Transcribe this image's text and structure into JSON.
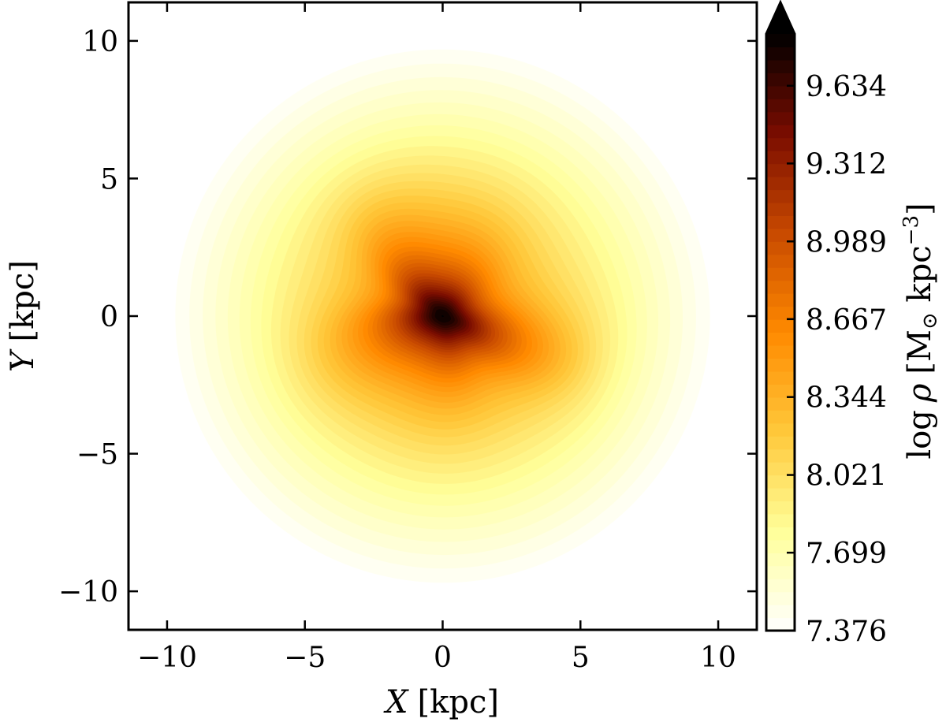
{
  "chart_data": {
    "type": "heatmap",
    "subtype": "filled-contour",
    "title": "",
    "xlabel_symbol": "X",
    "xlabel_unit": "[kpc]",
    "ylabel_symbol": "Y",
    "ylabel_unit": "[kpc]",
    "colorbar_label_prefix": "log",
    "colorbar_label_symbol": "ρ",
    "colorbar_label_unit_open": "[M",
    "colorbar_label_unit_sub": "⊙",
    "colorbar_label_unit_mid": " kpc",
    "colorbar_label_unit_sup": "−3",
    "colorbar_label_unit_close": "]",
    "xlim": [
      -11.4,
      11.4
    ],
    "ylim": [
      -11.4,
      11.4
    ],
    "x_ticks": [
      -10,
      -5,
      0,
      5,
      10
    ],
    "x_tick_labels": [
      "−10",
      "−5",
      "0",
      "5",
      "10"
    ],
    "y_ticks": [
      -10,
      -5,
      0,
      5,
      10
    ],
    "y_tick_labels": [
      "−10",
      "−5",
      "0",
      "5",
      "10"
    ],
    "colorbar_range": [
      7.376,
      9.849
    ],
    "colorbar_ticks": [
      7.376,
      7.699,
      8.021,
      8.344,
      8.667,
      8.989,
      9.312,
      9.634
    ],
    "colorbar_tick_labels": [
      "7.376",
      "7.699",
      "8.021",
      "8.344",
      "8.667",
      "8.989",
      "9.312",
      "9.634"
    ],
    "colorbar_extend": "max",
    "n_levels": 46,
    "colormap": "afmhot_r",
    "colormap_stops": [
      "#ffffff",
      "#ffff9a",
      "#ffc83a",
      "#ff8a00",
      "#c84a00",
      "#7a0c00",
      "#000000"
    ],
    "density_model": {
      "center": [
        0,
        0
      ],
      "log_rho_center": 9.85,
      "log_rho_at_r_10": 7.4,
      "core_radius_kpc": 0.9,
      "bar_position_angle_deg": -30,
      "bar_axis_ratio": 0.72
    }
  }
}
